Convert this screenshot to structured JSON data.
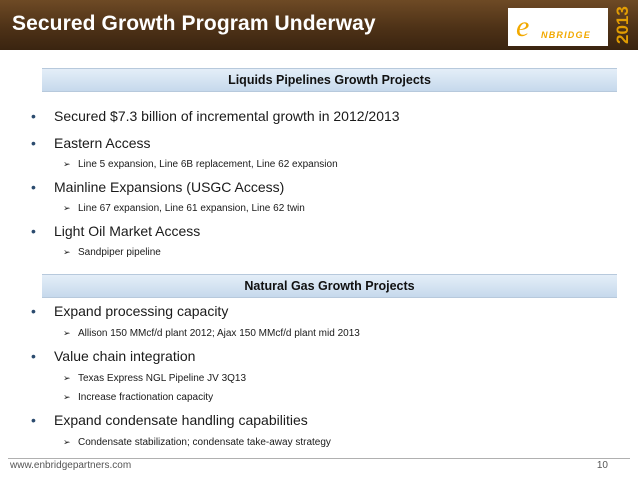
{
  "slide": {
    "title": "Secured Growth Program Underway",
    "logo_text": "NBRIDGE",
    "logo_mark": "e",
    "year": "2013",
    "website": "www.enbridgepartners.com",
    "page_number": "10"
  },
  "liquids": {
    "heading": "Liquids Pipelines Growth Projects",
    "items": [
      {
        "text": "Secured $7.3 billion of incremental growth in 2012/2013",
        "subs": []
      },
      {
        "text": "Eastern Access",
        "subs": [
          "Line 5 expansion, Line 6B replacement, Line 62 expansion"
        ]
      },
      {
        "text": "Mainline Expansions (USGC Access)",
        "subs": [
          "Line 67 expansion, Line 61 expansion, Line 62 twin"
        ]
      },
      {
        "text": "Light Oil Market Access",
        "subs": [
          "Sandpiper pipeline"
        ]
      }
    ]
  },
  "gas": {
    "heading": "Natural Gas Growth Projects",
    "items": [
      {
        "text": "Expand processing capacity",
        "subs": [
          "Allison 150 MMcf/d plant 2012; Ajax 150 MMcf/d plant mid 2013"
        ]
      },
      {
        "text": "Value chain integration",
        "subs": [
          "Texas Express NGL Pipeline JV 3Q13",
          "Increase fractionation capacity"
        ]
      },
      {
        "text": "Expand condensate handling capabilities",
        "subs": [
          "Condensate stabilization; condensate take-away strategy"
        ]
      }
    ]
  },
  "icons": {
    "bullet": "•",
    "sub_bullet": "➢"
  }
}
